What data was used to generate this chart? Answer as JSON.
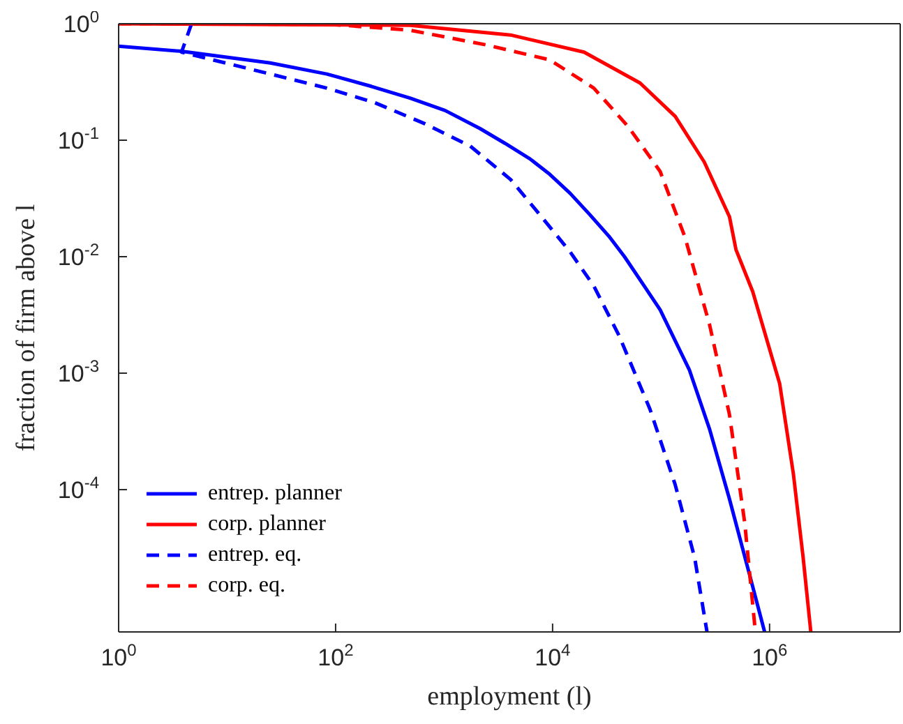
{
  "chart_data": {
    "type": "line",
    "xlabel": "employment (l)",
    "ylabel": "fraction of firm above l",
    "log": "xy",
    "xlim": [
      1,
      16000000
    ],
    "ylim": [
      6e-06,
      1
    ],
    "xticks": [
      {
        "value": 1,
        "label": "10$^{0}$"
      },
      {
        "value": 100,
        "label": "10$^{2}$"
      },
      {
        "value": 10000,
        "label": "10$^{4}$"
      },
      {
        "value": 1000000,
        "label": "10$^{6}$"
      }
    ],
    "yticks": [
      {
        "value": 0.0001,
        "label": "10$^{-4}$"
      },
      {
        "value": 0.001,
        "label": "10$^{-3}$"
      },
      {
        "value": 0.01,
        "label": "10$^{-2}$"
      },
      {
        "value": 0.1,
        "label": "10$^{-1}$"
      },
      {
        "value": 1,
        "label": "10$^{0}$"
      }
    ],
    "grid": false,
    "legend": "bottom left",
    "marker": "none",
    "series": [
      {
        "name": "entrep. planner",
        "color": "#0000ff",
        "line_style": "solid",
        "x": [
          1,
          3.8,
          25,
          83,
          213,
          485,
          1020,
          2140,
          3640,
          6200,
          9400,
          14500,
          22000,
          33000,
          46000,
          70000,
          98000,
          182000,
          280000,
          427000,
          650000,
          900000
        ],
        "values": [
          0.64,
          0.58,
          0.46,
          0.37,
          0.29,
          0.23,
          0.18,
          0.126,
          0.094,
          0.069,
          0.051,
          0.035,
          0.023,
          0.015,
          0.01,
          0.0056,
          0.0035,
          0.00107,
          0.00033,
          8.3e-05,
          1.9e-05,
          6e-06
        ]
      },
      {
        "name": "corp. planner",
        "color": "#ff0000",
        "line_style": "solid",
        "x": [
          1,
          485,
          4100,
          19500,
          64000,
          135000,
          250000,
          427000,
          490000,
          700000,
          1240000,
          1660000,
          2040000,
          2400000
        ],
        "values": [
          1,
          0.97,
          0.8,
          0.57,
          0.31,
          0.16,
          0.065,
          0.022,
          0.0115,
          0.005,
          0.00081,
          0.000135,
          2.6e-05,
          6e-06
        ]
      },
      {
        "name": "entrep. eq.",
        "color": "#0000ff",
        "line_style": "dashed",
        "x": [
          4.7,
          3.8,
          25,
          83,
          230,
          670,
          1740,
          4100,
          7600,
          14500,
          24000,
          41000,
          79000,
          135000,
          204000,
          265000
        ],
        "values": [
          1,
          0.57,
          0.37,
          0.28,
          0.21,
          0.138,
          0.089,
          0.046,
          0.023,
          0.011,
          0.0056,
          0.0021,
          0.00049,
          0.00011,
          2.6e-05,
          6e-06
        ]
      },
      {
        "name": "corp. eq.",
        "color": "#ff0000",
        "line_style": "dashed",
        "x": [
          1,
          10,
          100,
          485,
          2400,
          9400,
          24000,
          50000,
          98000,
          166000,
          222000,
          280000,
          427000,
          590000,
          740000
        ],
        "values": [
          1,
          1,
          0.98,
          0.88,
          0.66,
          0.49,
          0.28,
          0.13,
          0.054,
          0.0147,
          0.0056,
          0.0026,
          0.00044,
          5.2e-05,
          6e-06
        ]
      }
    ]
  }
}
